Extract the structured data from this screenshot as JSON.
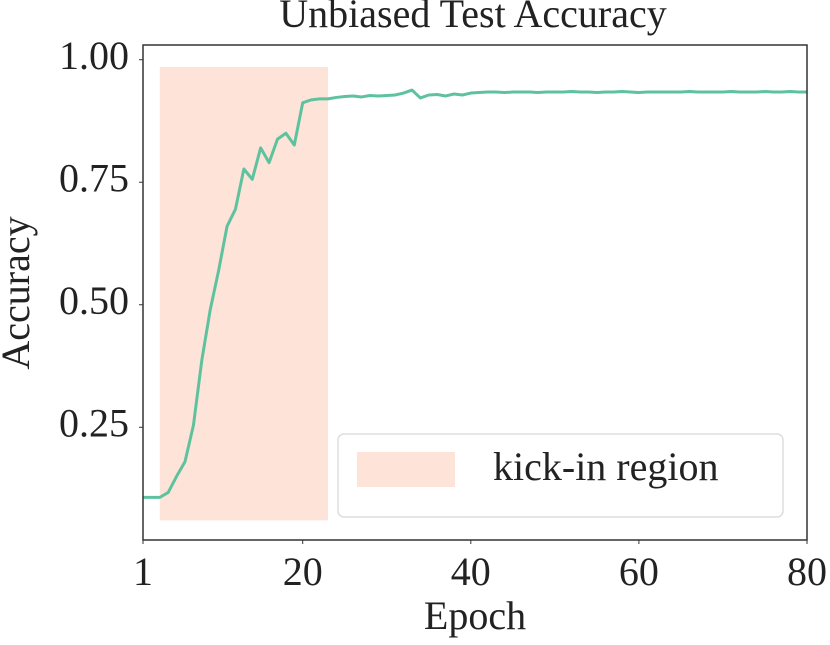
{
  "chart_data": {
    "type": "line",
    "title": "Unbiased Test Accuracy",
    "xlabel": "Epoch",
    "ylabel": "Accuracy",
    "xlim": [
      1,
      80
    ],
    "ylim": [
      0.02,
      1.03
    ],
    "xticks": [
      1,
      20,
      40,
      60,
      80
    ],
    "yticks": [
      0.25,
      {
        "value": 0.5,
        "label": "0.50"
      },
      0.75,
      {
        "value": 1,
        "label": "1.00"
      }
    ],
    "grid": false,
    "legend": "lower right",
    "region": {
      "name": "kick-in region",
      "color": "#fde3d8",
      "x": [
        3,
        23
      ],
      "y": [
        0.06,
        0.985
      ]
    },
    "series": [
      {
        "color": "#5fc29e",
        "x": [
          1,
          2,
          3,
          4,
          5,
          6,
          7,
          8,
          9,
          10,
          11,
          12,
          13,
          14,
          15,
          16,
          17,
          18,
          19,
          20,
          21,
          22,
          23,
          24,
          25,
          26,
          27,
          28,
          29,
          30,
          31,
          32,
          33,
          34,
          35,
          36,
          37,
          38,
          39,
          40,
          41,
          42,
          43,
          44,
          45,
          46,
          47,
          48,
          49,
          50,
          51,
          52,
          53,
          54,
          55,
          56,
          57,
          58,
          59,
          60,
          61,
          62,
          63,
          64,
          65,
          66,
          67,
          68,
          69,
          70,
          71,
          72,
          73,
          74,
          75,
          76,
          77,
          78,
          79,
          80
        ],
        "values": [
          0.107,
          0.107,
          0.107,
          0.117,
          0.15,
          0.18,
          0.254,
          0.387,
          0.49,
          0.57,
          0.66,
          0.695,
          0.777,
          0.756,
          0.82,
          0.79,
          0.838,
          0.85,
          0.826,
          0.912,
          0.918,
          0.92,
          0.92,
          0.923,
          0.925,
          0.926,
          0.924,
          0.927,
          0.926,
          0.927,
          0.928,
          0.932,
          0.938,
          0.922,
          0.928,
          0.929,
          0.926,
          0.93,
          0.928,
          0.932,
          0.933,
          0.934,
          0.934,
          0.933,
          0.934,
          0.934,
          0.934,
          0.933,
          0.934,
          0.934,
          0.934,
          0.935,
          0.934,
          0.934,
          0.933,
          0.934,
          0.934,
          0.935,
          0.934,
          0.933,
          0.934,
          0.934,
          0.934,
          0.934,
          0.934,
          0.935,
          0.934,
          0.934,
          0.934,
          0.934,
          0.935,
          0.934,
          0.934,
          0.934,
          0.935,
          0.934,
          0.934,
          0.935,
          0.934,
          0.934
        ]
      }
    ]
  }
}
